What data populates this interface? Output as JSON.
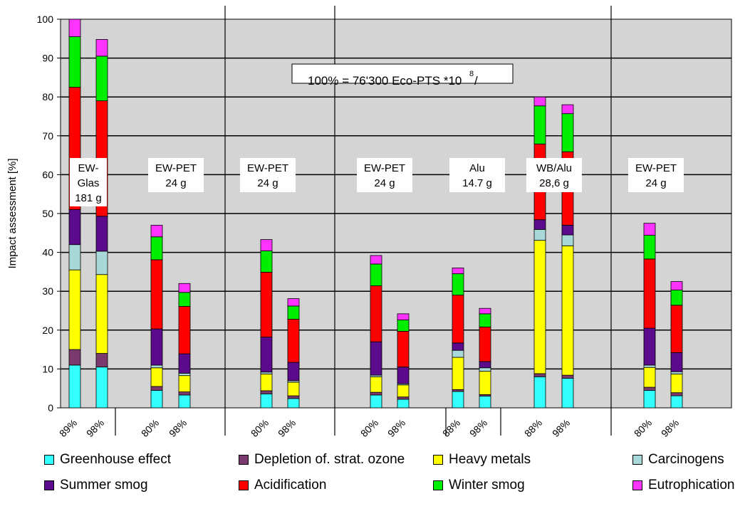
{
  "chart_data": {
    "type": "bar",
    "stacked": true,
    "title": "",
    "ylabel": "Impact assessment [%]",
    "xlabel": "",
    "ylim": [
      0,
      100
    ],
    "yticks": [
      0,
      10,
      20,
      30,
      40,
      50,
      60,
      70,
      80,
      90,
      100
    ],
    "grid": true,
    "legend_position": "bottom",
    "annotation": "100% = 76'300 Eco-PTS *10",
    "annotation_sup": "8",
    "annotation_suffix": " /",
    "colors": {
      "Greenhouse effect": "#33ffff",
      "Depletion of. strat. ozone": "#7a3a6e",
      "Heavy metals": "#ffff00",
      "Carcinogens": "#a8d8d8",
      "Summer smog": "#5a0a8a",
      "Acidification": "#ff0000",
      "Winter smog": "#00ee00",
      "Eutrophication": "#ff33ff"
    },
    "stack_order": [
      "Greenhouse effect",
      "Depletion of. strat. ozone",
      "Heavy metals",
      "Carcinogens",
      "Summer smog",
      "Acidification",
      "Winter smog",
      "Eutrophication"
    ],
    "legend_entries": [
      "Greenhouse effect",
      "Depletion of. strat. ozone",
      "Heavy metals",
      "Carcinogens",
      "Summer smog",
      "Acidification",
      "Winter smog",
      "Eutrophication"
    ],
    "groups": [
      {
        "label": [
          "EW-",
          "Glas",
          "181 g"
        ],
        "bars": [
          {
            "category": "89%",
            "values": {
              "Greenhouse effect": 11,
              "Depletion of. strat. ozone": 4,
              "Heavy metals": 20.5,
              "Carcinogens": 6.5,
              "Summer smog": 9,
              "Acidification": 31.5,
              "Winter smog": 13,
              "Eutrophication": 4.5
            }
          },
          {
            "category": "98%",
            "values": {
              "Greenhouse effect": 10.5,
              "Depletion of. strat. ozone": 3.5,
              "Heavy metals": 20.3,
              "Carcinogens": 6,
              "Summer smog": 9,
              "Acidification": 29.7,
              "Winter smog": 11.5,
              "Eutrophication": 4.3
            }
          }
        ]
      },
      {
        "label": [
          "EW-PET",
          "24 g"
        ],
        "bars": [
          {
            "category": "80%",
            "values": {
              "Greenhouse effect": 4.5,
              "Depletion of. strat. ozone": 1,
              "Heavy metals": 4.8,
              "Carcinogens": 0.7,
              "Summer smog": 9.3,
              "Acidification": 17.8,
              "Winter smog": 5.9,
              "Eutrophication": 3
            }
          },
          {
            "category": "98%",
            "values": {
              "Greenhouse effect": 3.3,
              "Depletion of. strat. ozone": 0.8,
              "Heavy metals": 4.2,
              "Carcinogens": 0.6,
              "Summer smog": 5,
              "Acidification": 12.2,
              "Winter smog": 3.6,
              "Eutrophication": 2.3
            }
          }
        ]
      },
      {
        "label": [
          "EW-PET",
          "24 g"
        ],
        "bars": [
          {
            "category": "80%",
            "values": {
              "Greenhouse effect": 3.6,
              "Depletion of. strat. ozone": 0.8,
              "Heavy metals": 4.3,
              "Carcinogens": 0.5,
              "Summer smog": 9,
              "Acidification": 16.7,
              "Winter smog": 5.5,
              "Eutrophication": 2.9
            }
          },
          {
            "category": "98%",
            "values": {
              "Greenhouse effect": 2.4,
              "Depletion of. strat. ozone": 0.7,
              "Heavy metals": 3.5,
              "Carcinogens": 0.4,
              "Summer smog": 4.7,
              "Acidification": 11.1,
              "Winter smog": 3.4,
              "Eutrophication": 1.9
            }
          }
        ]
      },
      {
        "label": [
          "EW-PET",
          "24 g"
        ],
        "bars": [
          {
            "category": "80%",
            "values": {
              "Greenhouse effect": 3.3,
              "Depletion of. strat. ozone": 0.7,
              "Heavy metals": 4,
              "Carcinogens": 0.4,
              "Summer smog": 8.6,
              "Acidification": 14.4,
              "Winter smog": 5.6,
              "Eutrophication": 2.2
            }
          },
          {
            "category": "98%",
            "values": {
              "Greenhouse effect": 2.2,
              "Depletion of. strat. ozone": 0.6,
              "Heavy metals": 3.1,
              "Carcinogens": 0.3,
              "Summer smog": 4.3,
              "Acidification": 9.2,
              "Winter smog": 2.9,
              "Eutrophication": 1.6
            }
          }
        ]
      },
      {
        "label": [
          "Alu",
          "14.7 g"
        ],
        "bars": [
          {
            "category": "88%",
            "values": {
              "Greenhouse effect": 4.2,
              "Depletion of. strat. ozone": 0.5,
              "Heavy metals": 8.3,
              "Carcinogens": 1.8,
              "Summer smog": 1.9,
              "Acidification": 12.3,
              "Winter smog": 5.5,
              "Eutrophication": 1.5
            }
          },
          {
            "category": "98%",
            "values": {
              "Greenhouse effect": 3,
              "Depletion of. strat. ozone": 0.4,
              "Heavy metals": 6,
              "Carcinogens": 0.9,
              "Summer smog": 1.6,
              "Acidification": 8.9,
              "Winter smog": 3.4,
              "Eutrophication": 1.4
            }
          }
        ]
      },
      {
        "label": [
          "WB/Alu",
          "28,6 g"
        ],
        "bars": [
          {
            "category": "88%",
            "values": {
              "Greenhouse effect": 8,
              "Depletion of. strat. ozone": 0.8,
              "Heavy metals": 34.3,
              "Carcinogens": 2.8,
              "Summer smog": 2.5,
              "Acidification": 19.5,
              "Winter smog": 9.8,
              "Eutrophication": 2.3
            }
          },
          {
            "category": "98%",
            "values": {
              "Greenhouse effect": 7.6,
              "Depletion of. strat. ozone": 0.8,
              "Heavy metals": 33.3,
              "Carcinogens": 2.8,
              "Summer smog": 2.5,
              "Acidification": 18.9,
              "Winter smog": 9.8,
              "Eutrophication": 2.3
            }
          }
        ]
      },
      {
        "label": [
          "EW-PET",
          "24 g"
        ],
        "bars": [
          {
            "category": "80%",
            "values": {
              "Greenhouse effect": 4.5,
              "Depletion of. strat. ozone": 0.8,
              "Heavy metals": 5.1,
              "Carcinogens": 0.6,
              "Summer smog": 9.5,
              "Acidification": 17.8,
              "Winter smog": 6.1,
              "Eutrophication": 3.1
            }
          },
          {
            "category": "98%",
            "values": {
              "Greenhouse effect": 3.1,
              "Depletion of. strat. ozone": 0.8,
              "Heavy metals": 4.8,
              "Carcinogens": 0.6,
              "Summer smog": 4.9,
              "Acidification": 12.2,
              "Winter smog": 3.9,
              "Eutrophication": 2.2
            }
          }
        ]
      }
    ]
  }
}
